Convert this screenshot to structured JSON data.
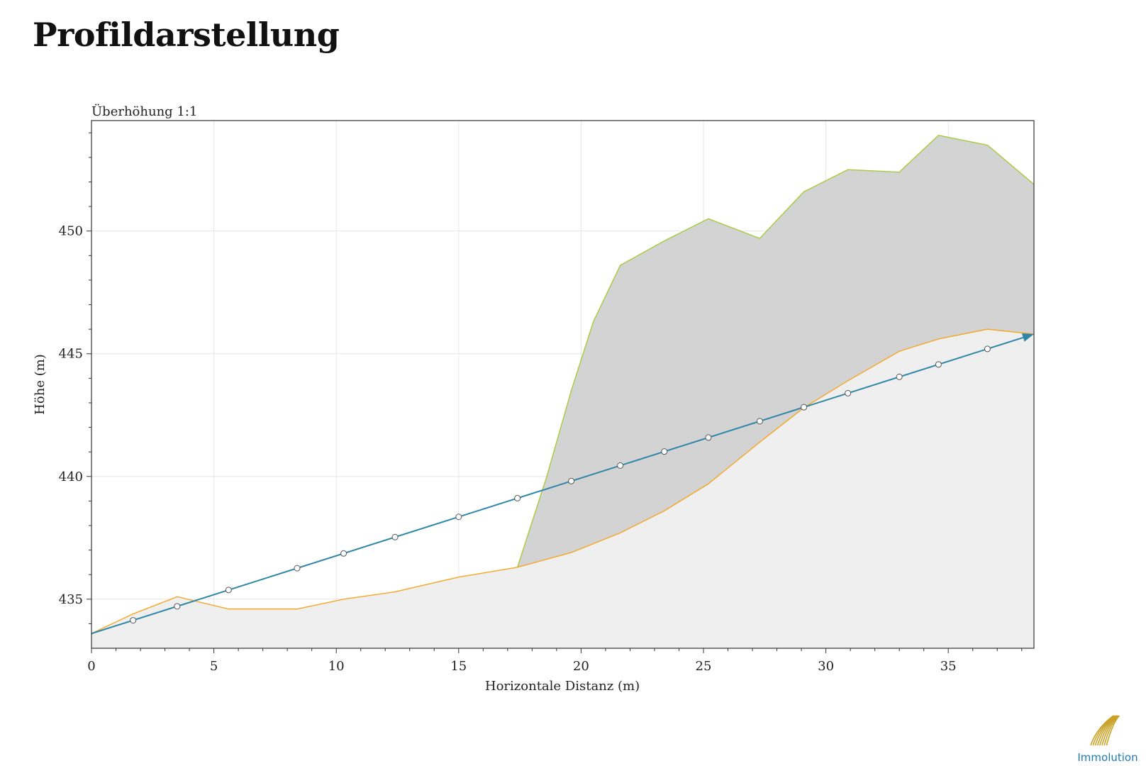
{
  "page": {
    "title": "Profildarstellung"
  },
  "logo": {
    "text": "Immolution",
    "color": "#1f7ab4",
    "gold": "#c9a227"
  },
  "chart_data": {
    "type": "area",
    "subtitle": "Überhöhung 1:1",
    "xlabel": "Horizontale Distanz (m)",
    "ylabel": "Höhe (m)",
    "xlim": [
      0,
      38.5
    ],
    "ylim": [
      433,
      454.5
    ],
    "xticks": [
      0,
      5,
      10,
      15,
      20,
      25,
      30,
      35
    ],
    "yticks": [
      435,
      440,
      445,
      450
    ],
    "grid": true,
    "colors": {
      "terrain_fill": "#efefef",
      "terrain_line": "#f5a623",
      "upper_fill": "#d3d3d3",
      "upper_line": "#a8c93a",
      "sight_line": "#2e86a8"
    },
    "series": [
      {
        "role": "terrain",
        "x": [
          0,
          1.7,
          3.5,
          5.6,
          8.4,
          10.3,
          12.4,
          15.0,
          17.4,
          19.6,
          21.6,
          23.4,
          25.2,
          27.3,
          29.1,
          30.9,
          33.0,
          34.6,
          36.6,
          38.5
        ],
        "y": [
          433.6,
          434.4,
          435.1,
          434.6,
          434.6,
          435.0,
          435.3,
          435.9,
          436.3,
          436.9,
          437.7,
          438.6,
          439.7,
          441.4,
          442.8,
          443.9,
          445.1,
          445.6,
          446.0,
          445.8
        ]
      },
      {
        "role": "upper",
        "x": [
          17.4,
          18.6,
          19.6,
          20.5,
          21.6,
          23.4,
          25.2,
          27.3,
          29.1,
          30.9,
          33.0,
          34.6,
          36.6,
          38.5
        ],
        "y": [
          436.3,
          440.0,
          443.5,
          446.3,
          448.6,
          449.6,
          450.5,
          449.7,
          451.6,
          452.5,
          452.4,
          453.9,
          453.5,
          451.9
        ]
      },
      {
        "role": "sight_line",
        "x": [
          0,
          38.5
        ],
        "y": [
          433.6,
          445.8
        ],
        "markers_x": [
          1.7,
          3.5,
          5.6,
          8.4,
          10.3,
          12.4,
          15.0,
          17.4,
          19.6,
          21.6,
          23.4,
          25.2,
          27.3,
          29.1,
          30.9,
          33.0,
          34.6,
          36.6
        ]
      }
    ]
  }
}
